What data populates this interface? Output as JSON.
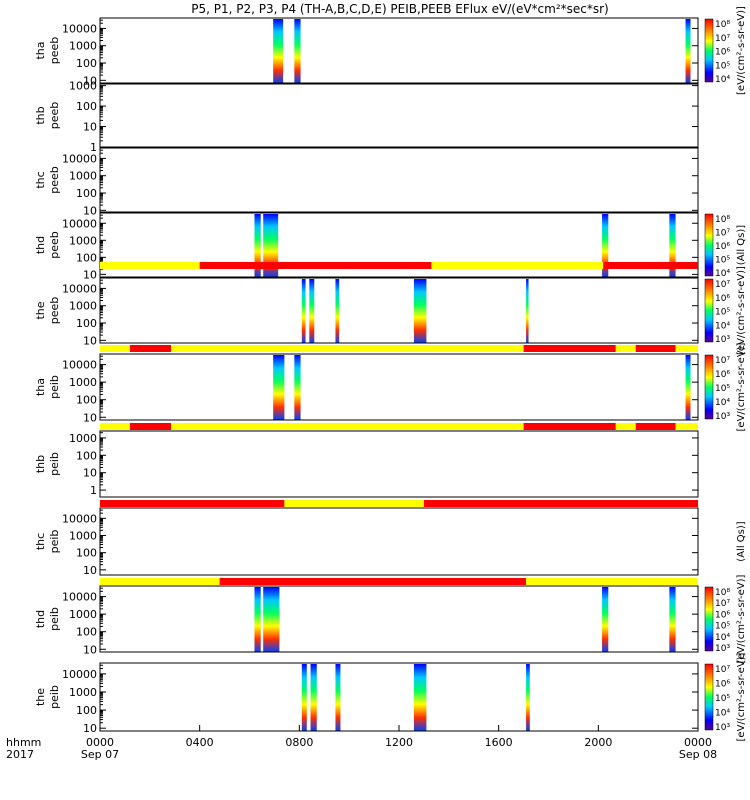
{
  "title": "P5, P1, P2, P3, P4 (TH-A,B,C,D,E) PEIB,PEEB EFlux eV/(eV*cm²*sec*sr)",
  "colors": {
    "red": "#ff0000",
    "yellow": "#ffff00",
    "black": "#000000"
  },
  "chart_data": {
    "type": "heatmap",
    "x_axis": {
      "range_hours": [
        0,
        24
      ],
      "tick_hours": [
        0,
        4,
        8,
        12,
        16,
        20,
        24
      ],
      "tick_labels": [
        "0000",
        "0400",
        "0800",
        "1200",
        "1600",
        "2000",
        "0000"
      ],
      "date_labels": [
        {
          "hour": 0,
          "text": "Sep 07"
        },
        {
          "hour": 24,
          "text": "Sep 08"
        }
      ],
      "row_labels": [
        "hhmm",
        "2017"
      ]
    },
    "panels": [
      {
        "probe": "tha",
        "product": "peeb",
        "yrange": [
          7,
          40000
        ],
        "ticks": [
          10,
          100,
          1000,
          10000
        ],
        "tick_labels": [
          "10",
          "100",
          "1000",
          "10000"
        ],
        "intervals": [
          [
            6.95,
            7.35
          ],
          [
            7.8,
            8.05
          ],
          [
            23.5,
            23.7
          ]
        ],
        "colorbar": {
          "ticks": [
            "10⁴",
            "10⁵",
            "10⁶",
            "10⁷",
            "10⁸"
          ],
          "label": "[eV/(cm²-s-sr-eV)]"
        }
      },
      {
        "probe": "thb",
        "product": "peeb",
        "yrange": [
          1,
          1200
        ],
        "ticks": [
          1,
          10,
          100,
          1000
        ],
        "tick_labels": [
          "1",
          "10",
          "100",
          "1000"
        ],
        "intervals": [],
        "colorbar": null
      },
      {
        "probe": "thc",
        "product": "peeb",
        "yrange": [
          8,
          40000
        ],
        "ticks": [
          10,
          100,
          1000,
          10000
        ],
        "tick_labels": [
          "10",
          "100",
          "1000",
          "10000"
        ],
        "intervals": [],
        "colorbar": null
      },
      {
        "probe": "thd",
        "product": "peeb",
        "yrange": [
          7,
          40000
        ],
        "ticks": [
          10,
          100,
          1000,
          10000
        ],
        "tick_labels": [
          "10",
          "100",
          "1000",
          "10000"
        ],
        "intervals": [
          [
            6.2,
            6.45
          ],
          [
            6.55,
            7.15
          ],
          [
            20.15,
            20.4
          ],
          [
            22.85,
            23.1
          ]
        ],
        "colorbar": {
          "ticks": [
            "10⁴",
            "10⁵",
            "10⁶",
            "10⁷",
            "10⁸"
          ],
          "label": "(All Qs)]"
        }
      },
      {
        "probe": "the",
        "product": "peeb",
        "yrange": [
          7,
          40000
        ],
        "ticks": [
          10,
          100,
          1000,
          10000
        ],
        "tick_labels": [
          "10",
          "100",
          "1000",
          "10000"
        ],
        "mode_bar": [
          {
            "from": 0,
            "to": 4,
            "color": "yellow"
          },
          {
            "from": 4,
            "to": 13.3,
            "color": "red"
          },
          {
            "from": 13.3,
            "to": 20.2,
            "color": "yellow"
          },
          {
            "from": 20.2,
            "to": 24,
            "color": "red"
          }
        ],
        "intervals": [
          [
            8.1,
            8.25
          ],
          [
            8.4,
            8.6
          ],
          [
            9.45,
            9.6
          ],
          [
            12.6,
            13.1
          ],
          [
            17.1,
            17.2
          ]
        ],
        "colorbar": {
          "ticks": [
            "10³",
            "10⁴",
            "10⁵",
            "10⁶",
            "10⁷"
          ],
          "label": "[eV/(cm²-s-sr-eV)]"
        }
      },
      {
        "probe": "tha",
        "product": "peib",
        "yrange": [
          7,
          40000
        ],
        "ticks": [
          10,
          100,
          1000,
          10000
        ],
        "tick_labels": [
          "10",
          "100",
          "1000",
          "10000"
        ],
        "mode_bar": [
          {
            "from": 0,
            "to": 1.2,
            "color": "yellow"
          },
          {
            "from": 1.2,
            "to": 2.85,
            "color": "red"
          },
          {
            "from": 2.85,
            "to": 17,
            "color": "yellow"
          },
          {
            "from": 17,
            "to": 20.7,
            "color": "red"
          },
          {
            "from": 20.7,
            "to": 21.5,
            "color": "yellow"
          },
          {
            "from": 21.5,
            "to": 23.1,
            "color": "red"
          },
          {
            "from": 23.1,
            "to": 24,
            "color": "yellow"
          }
        ],
        "intervals": [
          [
            6.95,
            7.4
          ],
          [
            7.8,
            8.05
          ],
          [
            23.5,
            23.7
          ]
        ],
        "colorbar": {
          "ticks": [
            "10³",
            "10⁴",
            "10⁵",
            "10⁶",
            "10⁷"
          ],
          "label": "[eV/(cm²-s-sr-eV)]"
        }
      },
      {
        "probe": "thb",
        "product": "peib",
        "yrange": [
          0.4,
          2500
        ],
        "ticks": [
          1,
          10,
          100,
          1000
        ],
        "tick_labels": [
          "1",
          "10",
          "100",
          "1000"
        ],
        "mode_bar": [
          {
            "from": 0,
            "to": 1.2,
            "color": "yellow"
          },
          {
            "from": 1.2,
            "to": 2.85,
            "color": "red"
          },
          {
            "from": 2.85,
            "to": 17,
            "color": "yellow"
          },
          {
            "from": 17,
            "to": 20.7,
            "color": "red"
          },
          {
            "from": 20.7,
            "to": 21.5,
            "color": "yellow"
          },
          {
            "from": 21.5,
            "to": 23.1,
            "color": "red"
          },
          {
            "from": 23.1,
            "to": 24,
            "color": "yellow"
          }
        ],
        "intervals": [],
        "colorbar": null
      },
      {
        "probe": "thc",
        "product": "peib",
        "yrange": [
          5,
          40000
        ],
        "ticks": [
          10,
          100,
          1000,
          10000
        ],
        "tick_labels": [
          "10",
          "100",
          "1000",
          "10000"
        ],
        "mode_bar": [
          {
            "from": 0,
            "to": 7.4,
            "color": "red"
          },
          {
            "from": 7.4,
            "to": 13,
            "color": "yellow"
          },
          {
            "from": 13,
            "to": 24,
            "color": "red"
          }
        ],
        "intervals": [],
        "colorbar": {
          "ticks": [],
          "label": "(All Qs)]"
        }
      },
      {
        "probe": "thd",
        "product": "peib",
        "yrange": [
          7,
          40000
        ],
        "ticks": [
          10,
          100,
          1000,
          10000
        ],
        "tick_labels": [
          "10",
          "100",
          "1000",
          "10000"
        ],
        "mode_bar": [
          {
            "from": 0,
            "to": 4.8,
            "color": "yellow"
          },
          {
            "from": 4.8,
            "to": 17.1,
            "color": "red"
          },
          {
            "from": 17.1,
            "to": 24,
            "color": "yellow"
          }
        ],
        "intervals": [
          [
            6.2,
            6.45
          ],
          [
            6.55,
            7.2
          ],
          [
            20.15,
            20.4
          ],
          [
            22.85,
            23.1
          ]
        ],
        "colorbar": {
          "ticks": [
            "10³",
            "10⁴",
            "10⁵",
            "10⁶",
            "10⁷",
            "10⁸"
          ],
          "label": "[eV/(cm²-s-sr-eV)]"
        }
      },
      {
        "probe": "the",
        "product": "peib",
        "yrange": [
          7,
          40000
        ],
        "ticks": [
          10,
          100,
          1000,
          10000
        ],
        "tick_labels": [
          "10",
          "100",
          "1000",
          "10000"
        ],
        "intervals": [
          [
            8.1,
            8.3
          ],
          [
            8.45,
            8.7
          ],
          [
            9.45,
            9.65
          ],
          [
            12.6,
            13.1
          ],
          [
            17.1,
            17.25
          ]
        ],
        "colorbar": {
          "ticks": [
            "10³",
            "10⁴",
            "10⁵",
            "10⁶",
            "10⁷"
          ],
          "label": "[eV/(cm²-s-sr-eV)]"
        }
      }
    ]
  }
}
